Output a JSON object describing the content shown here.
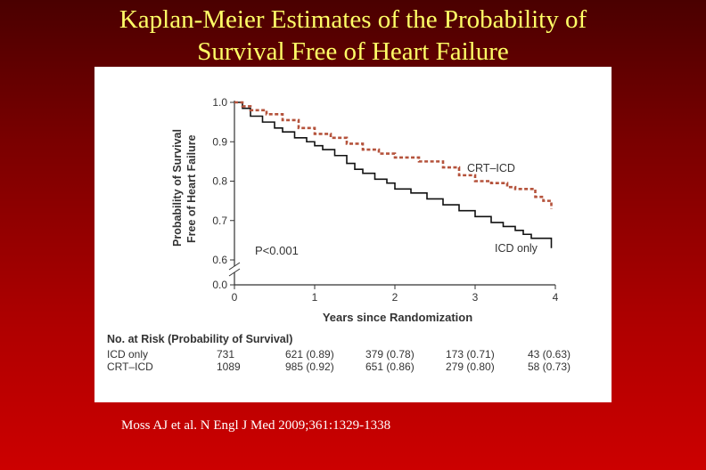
{
  "slide": {
    "title_line1": "Kaplan-Meier Estimates of the Probability of",
    "title_line2": "Survival Free of Heart Failure",
    "citation": "Moss AJ et al. N Engl J Med 2009;361:1329-1338"
  },
  "chart_data": {
    "type": "line",
    "title": "",
    "xlabel": "Years since Randomization",
    "ylabel": [
      "Probability of Survival",
      "Free of Heart Failure"
    ],
    "xlim": [
      0,
      4
    ],
    "ylim": [
      0.0,
      1.0
    ],
    "axis_break": "between 0.0 and 0.6",
    "x_ticks": [
      "0",
      "1",
      "2",
      "3",
      "4"
    ],
    "y_ticks": [
      "0.0",
      "0.6",
      "0.7",
      "0.8",
      "0.9",
      "1.0"
    ],
    "annotation": "P<0.001",
    "series": [
      {
        "name": "ICD only",
        "style": "solid",
        "color": "#111111",
        "points": [
          [
            0,
            1.0
          ],
          [
            0.1,
            0.985
          ],
          [
            0.2,
            0.965
          ],
          [
            0.35,
            0.95
          ],
          [
            0.5,
            0.935
          ],
          [
            0.6,
            0.925
          ],
          [
            0.75,
            0.91
          ],
          [
            0.9,
            0.9
          ],
          [
            1.0,
            0.89
          ],
          [
            1.1,
            0.88
          ],
          [
            1.25,
            0.865
          ],
          [
            1.4,
            0.845
          ],
          [
            1.5,
            0.83
          ],
          [
            1.6,
            0.82
          ],
          [
            1.75,
            0.805
          ],
          [
            1.9,
            0.795
          ],
          [
            2.0,
            0.78
          ],
          [
            2.2,
            0.77
          ],
          [
            2.4,
            0.755
          ],
          [
            2.6,
            0.74
          ],
          [
            2.8,
            0.725
          ],
          [
            3.0,
            0.71
          ],
          [
            3.1,
            0.71
          ],
          [
            3.2,
            0.695
          ],
          [
            3.35,
            0.685
          ],
          [
            3.5,
            0.675
          ],
          [
            3.6,
            0.665
          ],
          [
            3.7,
            0.655
          ],
          [
            3.85,
            0.655
          ],
          [
            3.95,
            0.63
          ]
        ]
      },
      {
        "name": "CRT–ICD",
        "style": "dashed",
        "color": "#b5533c",
        "points": [
          [
            0,
            1.0
          ],
          [
            0.1,
            0.99
          ],
          [
            0.2,
            0.98
          ],
          [
            0.4,
            0.97
          ],
          [
            0.6,
            0.955
          ],
          [
            0.8,
            0.935
          ],
          [
            1.0,
            0.92
          ],
          [
            1.2,
            0.91
          ],
          [
            1.4,
            0.895
          ],
          [
            1.6,
            0.88
          ],
          [
            1.8,
            0.87
          ],
          [
            2.0,
            0.86
          ],
          [
            2.3,
            0.85
          ],
          [
            2.6,
            0.835
          ],
          [
            2.8,
            0.815
          ],
          [
            3.0,
            0.8
          ],
          [
            3.2,
            0.795
          ],
          [
            3.4,
            0.785
          ],
          [
            3.5,
            0.78
          ],
          [
            3.6,
            0.78
          ],
          [
            3.75,
            0.76
          ],
          [
            3.85,
            0.75
          ],
          [
            3.95,
            0.73
          ]
        ]
      }
    ],
    "risk_table": {
      "header": "No. at Risk (Probability of Survival)",
      "rows": [
        {
          "label": "ICD only",
          "values": [
            "731",
            "621 (0.89)",
            "379 (0.78)",
            "173 (0.71)",
            "43 (0.63)"
          ]
        },
        {
          "label": "CRT–ICD",
          "values": [
            "1089",
            "985 (0.92)",
            "651 (0.86)",
            "279 (0.80)",
            "58 (0.73)"
          ]
        }
      ]
    }
  }
}
